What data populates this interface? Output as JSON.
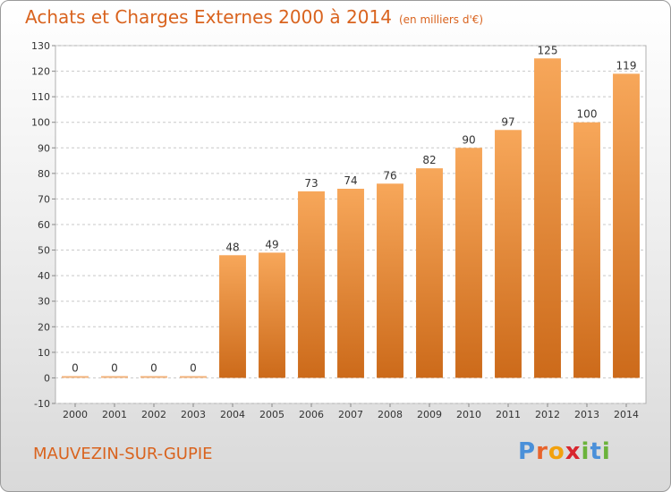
{
  "header": {
    "title": "Achats et Charges Externes 2000 à 2014",
    "unit": "(en milliers d'€)"
  },
  "footer": {
    "city": "MAUVEZIN-SUR-GUPIE",
    "logo": [
      "P",
      "r",
      "o",
      "x",
      "i",
      "t",
      "i"
    ],
    "logo_colors": [
      "#4a90d9",
      "#e8632b",
      "#f2a10d",
      "#d8262e",
      "#6bb33b",
      "#4a90d9",
      "#6bb33b"
    ]
  },
  "chart_data": {
    "type": "bar",
    "title": "Achats et Charges Externes 2000 à 2014",
    "subtitle": "(en milliers d'€)",
    "categories": [
      "2000",
      "2001",
      "2002",
      "2003",
      "2004",
      "2005",
      "2006",
      "2007",
      "2008",
      "2009",
      "2010",
      "2011",
      "2012",
      "2013",
      "2014"
    ],
    "values": [
      0,
      0,
      0,
      0,
      48,
      49,
      73,
      74,
      76,
      82,
      90,
      97,
      125,
      100,
      119
    ],
    "ylim": [
      -10,
      130
    ],
    "yticks": [
      -10,
      0,
      10,
      20,
      30,
      40,
      50,
      60,
      70,
      80,
      90,
      100,
      110,
      120,
      130
    ],
    "grid": true,
    "bar_color_light": "#f7a75a",
    "bar_color_dark": "#cc6a1a"
  }
}
